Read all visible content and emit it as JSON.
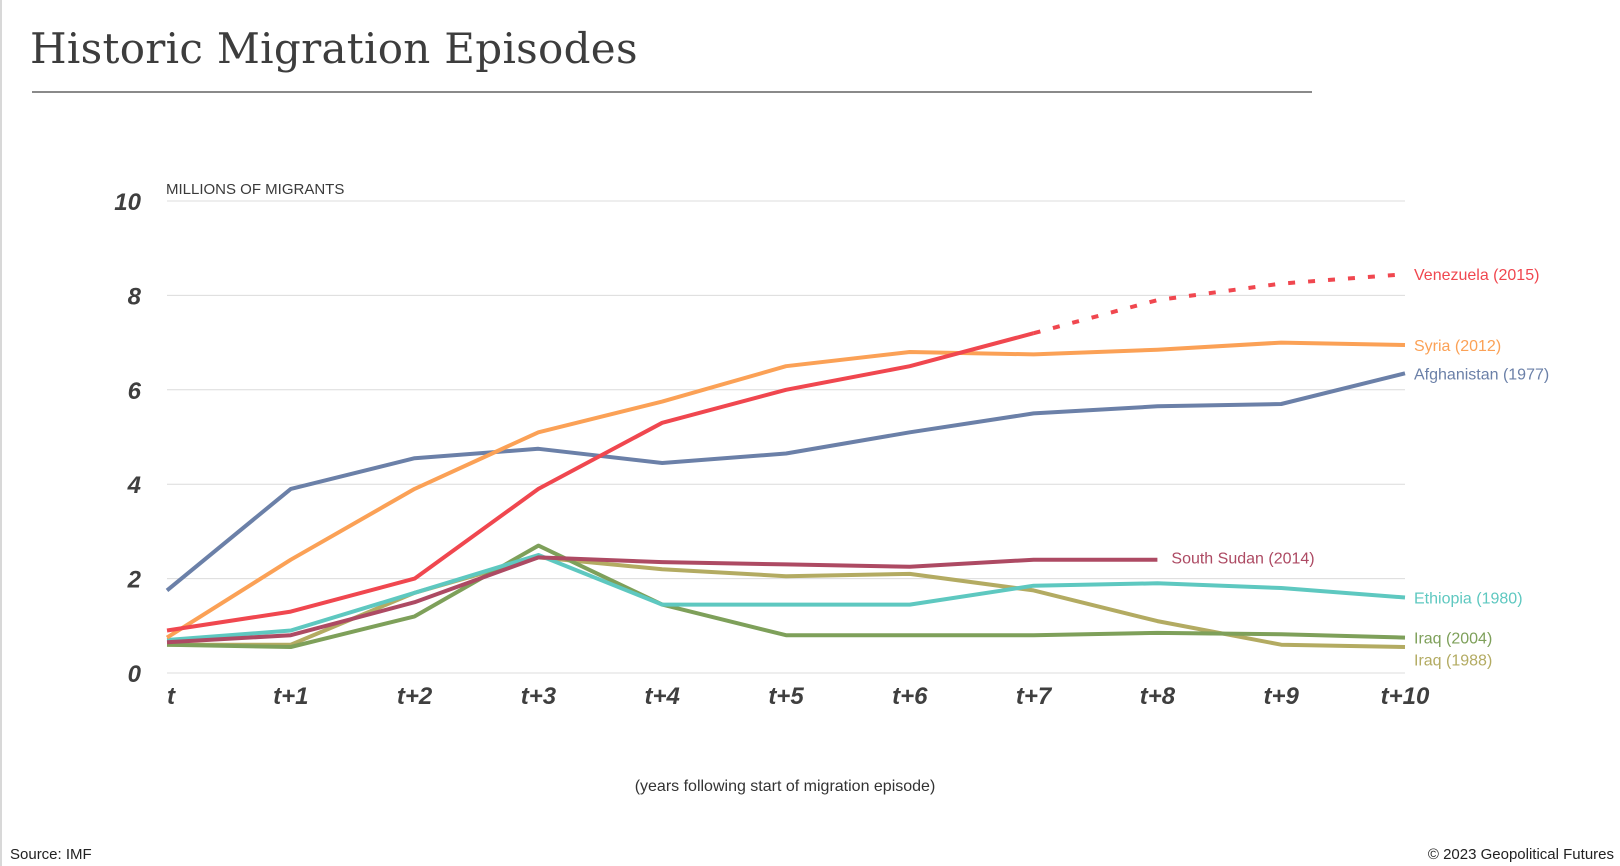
{
  "page": {
    "title": "Historic Migration Episodes",
    "source": "Source: IMF",
    "copyright": "© 2023 Geopolitical Futures"
  },
  "chart_data": {
    "type": "line",
    "title": "Historic Migration Episodes",
    "ylabel": "MILLIONS OF MIGRANTS",
    "xlabel": "(years following start of migration episode)",
    "categories": [
      "t",
      "t+1",
      "t+2",
      "t+3",
      "t+4",
      "t+5",
      "t+6",
      "t+7",
      "t+8",
      "t+9",
      "t+10"
    ],
    "ylim": [
      0,
      10
    ],
    "yticks": [
      0,
      2,
      4,
      6,
      8,
      10
    ],
    "grid": "horizontal",
    "legend": "inline labels at line ends",
    "series": [
      {
        "name": "Venezuela (2015)",
        "color": "#f0474f",
        "values": [
          0.9,
          1.3,
          2.0,
          3.9,
          5.3,
          6.0,
          6.5,
          7.2,
          null,
          null,
          null
        ],
        "projected": [
          null,
          null,
          null,
          null,
          null,
          null,
          null,
          7.2,
          7.9,
          8.25,
          8.45
        ]
      },
      {
        "name": "Syria (2012)",
        "color": "#fba156",
        "values": [
          0.75,
          2.4,
          3.9,
          5.1,
          5.75,
          6.5,
          6.8,
          6.75,
          6.85,
          7.0,
          6.95
        ]
      },
      {
        "name": "Afghanistan (1977)",
        "color": "#6b80a8",
        "values": [
          1.75,
          3.9,
          4.55,
          4.75,
          4.45,
          4.65,
          5.1,
          5.5,
          5.65,
          5.7,
          6.35
        ]
      },
      {
        "name": "South Sudan (2014)",
        "color": "#ad4a63",
        "values": [
          0.65,
          0.8,
          1.5,
          2.45,
          2.35,
          2.3,
          2.25,
          2.4,
          2.4,
          null,
          null
        ]
      },
      {
        "name": "Ethiopia (1980)",
        "color": "#5ec8c0",
        "values": [
          0.7,
          0.9,
          1.7,
          2.5,
          1.45,
          1.45,
          1.45,
          1.85,
          1.9,
          1.8,
          1.6
        ]
      },
      {
        "name": "Iraq (2004)",
        "color": "#7ea05a",
        "values": [
          0.6,
          0.55,
          1.2,
          2.7,
          1.45,
          0.8,
          0.8,
          0.8,
          0.85,
          0.82,
          0.75
        ]
      },
      {
        "name": "Iraq (1988)",
        "color": "#b3ab62",
        "values": [
          0.6,
          0.6,
          1.7,
          2.45,
          2.2,
          2.05,
          2.1,
          1.75,
          1.1,
          0.6,
          0.55
        ]
      }
    ]
  }
}
